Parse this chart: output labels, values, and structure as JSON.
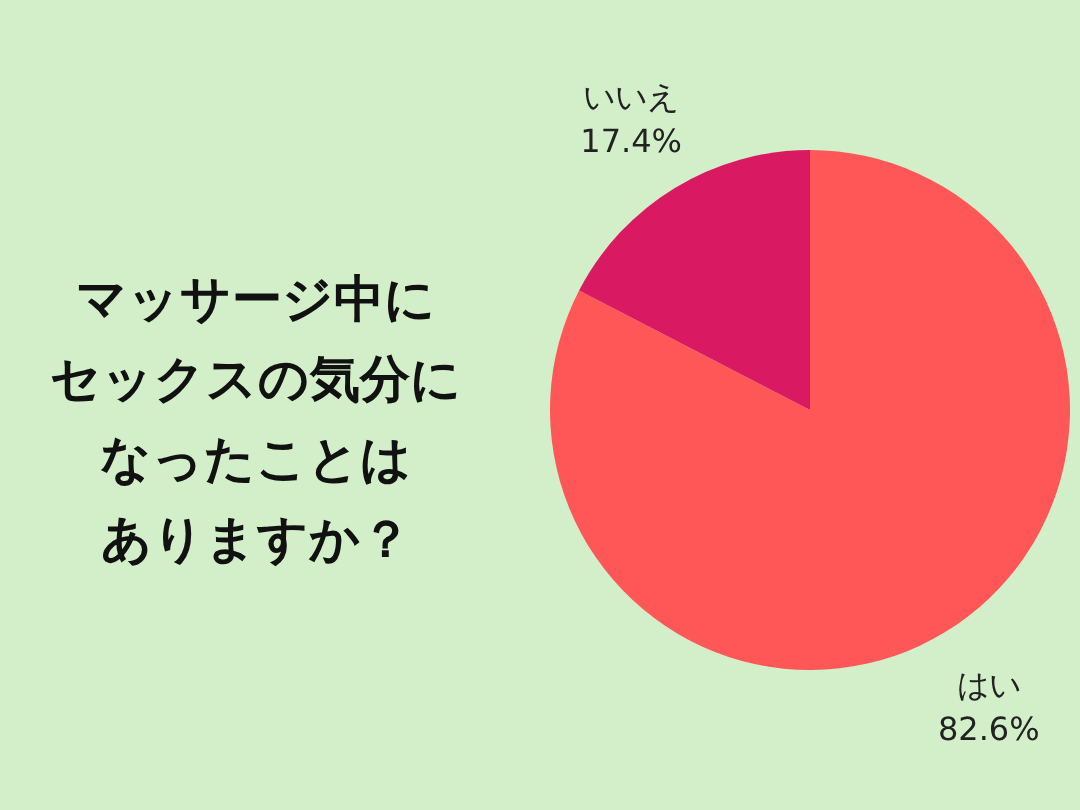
{
  "chart_data": {
    "type": "pie",
    "title": "マッサージ中にセックスの気分になったことはありますか？",
    "categories": [
      "はい",
      "いいえ"
    ],
    "values": [
      82.6,
      17.4
    ],
    "colors": [
      "#ff5757",
      "#d91a63"
    ],
    "value_labels": [
      "82.6%",
      "17.4%"
    ]
  }
}
